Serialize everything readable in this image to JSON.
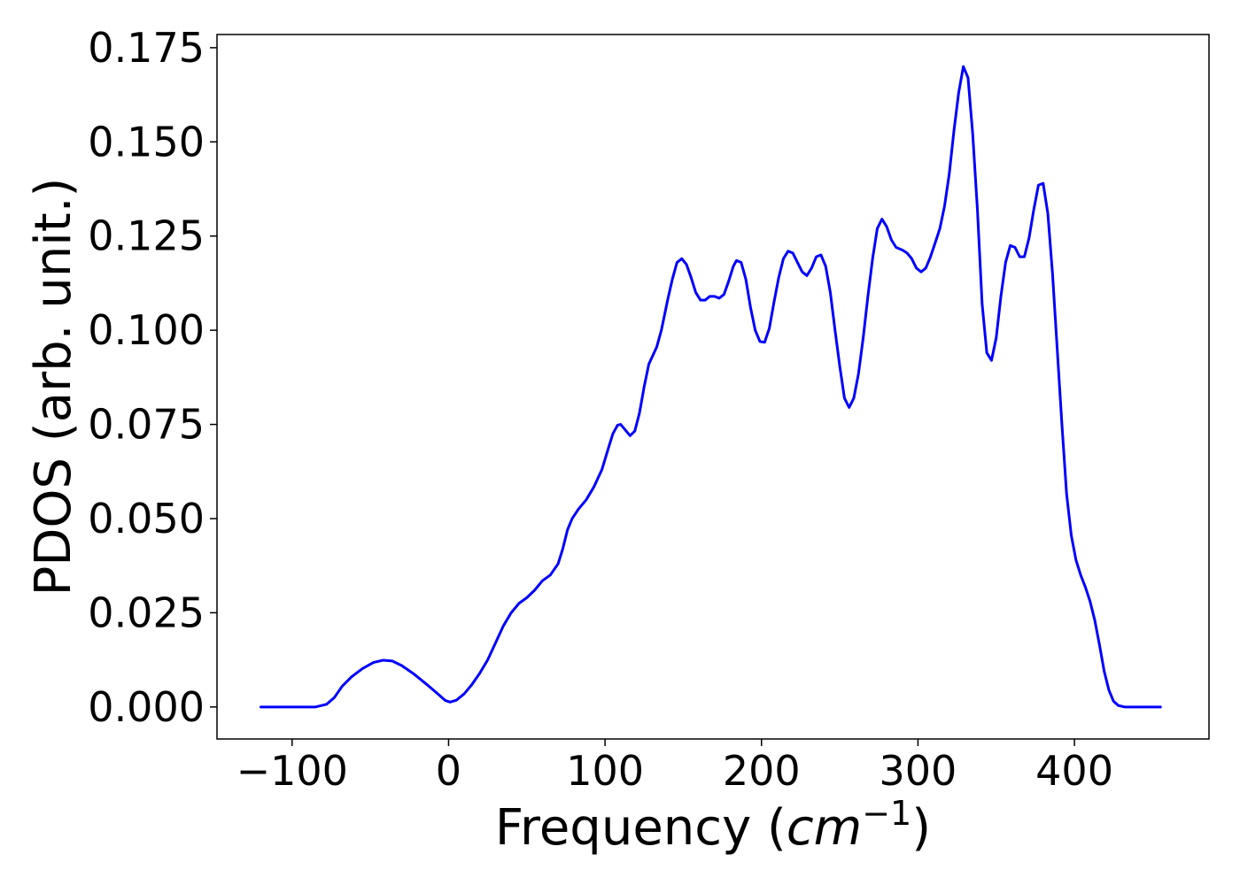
{
  "chart_data": {
    "type": "line",
    "xlabel": {
      "prefix": "Frequency (",
      "italic": "cm",
      "superscript": "−1",
      "suffix": ")"
    },
    "ylabel": "PDOS (arb. unit.)",
    "xlim": [
      -148,
      486
    ],
    "ylim": [
      -0.0085,
      0.1785
    ],
    "x_ticks": [
      {
        "value": -100,
        "label": "−100"
      },
      {
        "value": 0,
        "label": "0"
      },
      {
        "value": 100,
        "label": "100"
      },
      {
        "value": 200,
        "label": "200"
      },
      {
        "value": 300,
        "label": "300"
      },
      {
        "value": 400,
        "label": "400"
      }
    ],
    "y_ticks": [
      {
        "value": 0.0,
        "label": "0.000"
      },
      {
        "value": 0.025,
        "label": "0.025"
      },
      {
        "value": 0.05,
        "label": "0.050"
      },
      {
        "value": 0.075,
        "label": "0.075"
      },
      {
        "value": 0.1,
        "label": "0.100"
      },
      {
        "value": 0.125,
        "label": "0.125"
      },
      {
        "value": 0.15,
        "label": "0.150"
      },
      {
        "value": 0.175,
        "label": "0.175"
      }
    ],
    "grid": false,
    "series": [
      {
        "color": "#0000ff",
        "points": [
          [
            -120,
            0.0
          ],
          [
            -100,
            0.0
          ],
          [
            -85,
            0.0
          ],
          [
            -78,
            0.0007
          ],
          [
            -73,
            0.0025
          ],
          [
            -68,
            0.0055
          ],
          [
            -62,
            0.008
          ],
          [
            -55,
            0.0102
          ],
          [
            -48,
            0.0118
          ],
          [
            -42,
            0.0124
          ],
          [
            -36,
            0.0122
          ],
          [
            -30,
            0.011
          ],
          [
            -22,
            0.0087
          ],
          [
            -14,
            0.006
          ],
          [
            -7,
            0.0035
          ],
          [
            -2,
            0.0017
          ],
          [
            1,
            0.0013
          ],
          [
            5,
            0.0018
          ],
          [
            10,
            0.0035
          ],
          [
            15,
            0.006
          ],
          [
            20,
            0.009
          ],
          [
            25,
            0.0125
          ],
          [
            30,
            0.017
          ],
          [
            35,
            0.0215
          ],
          [
            40,
            0.025
          ],
          [
            45,
            0.0275
          ],
          [
            50,
            0.029
          ],
          [
            55,
            0.031
          ],
          [
            60,
            0.0335
          ],
          [
            65,
            0.035
          ],
          [
            70,
            0.038
          ],
          [
            73,
            0.042
          ],
          [
            76,
            0.047
          ],
          [
            79,
            0.05
          ],
          [
            83,
            0.0525
          ],
          [
            88,
            0.055
          ],
          [
            93,
            0.0585
          ],
          [
            98,
            0.063
          ],
          [
            102,
            0.0685
          ],
          [
            105,
            0.0725
          ],
          [
            108,
            0.0748
          ],
          [
            110,
            0.075
          ],
          [
            113,
            0.0735
          ],
          [
            116,
            0.072
          ],
          [
            119,
            0.0732
          ],
          [
            122,
            0.078
          ],
          [
            125,
            0.085
          ],
          [
            128,
            0.091
          ],
          [
            133,
            0.0955
          ],
          [
            136,
            0.1
          ],
          [
            140,
            0.108
          ],
          [
            143,
            0.1135
          ],
          [
            146,
            0.118
          ],
          [
            149,
            0.119
          ],
          [
            152,
            0.1175
          ],
          [
            155,
            0.114
          ],
          [
            158,
            0.11
          ],
          [
            161,
            0.108
          ],
          [
            164,
            0.108
          ],
          [
            167,
            0.109
          ],
          [
            170,
            0.109
          ],
          [
            173,
            0.1085
          ],
          [
            176,
            0.1095
          ],
          [
            179,
            0.113
          ],
          [
            182,
            0.117
          ],
          [
            184,
            0.1185
          ],
          [
            187,
            0.118
          ],
          [
            190,
            0.1135
          ],
          [
            193,
            0.106
          ],
          [
            196,
            0.1
          ],
          [
            199,
            0.097
          ],
          [
            202,
            0.0968
          ],
          [
            205,
            0.1005
          ],
          [
            208,
            0.1075
          ],
          [
            211,
            0.114
          ],
          [
            214,
            0.119
          ],
          [
            217,
            0.121
          ],
          [
            220,
            0.1205
          ],
          [
            223,
            0.118
          ],
          [
            226,
            0.1155
          ],
          [
            229,
            0.1145
          ],
          [
            232,
            0.1165
          ],
          [
            235,
            0.1195
          ],
          [
            238,
            0.12
          ],
          [
            241,
            0.117
          ],
          [
            244,
            0.11
          ],
          [
            247,
            0.1
          ],
          [
            250,
            0.0905
          ],
          [
            253,
            0.082
          ],
          [
            256,
            0.0795
          ],
          [
            259,
            0.082
          ],
          [
            262,
            0.0885
          ],
          [
            265,
            0.098
          ],
          [
            268,
            0.109
          ],
          [
            271,
            0.119
          ],
          [
            274,
            0.127
          ],
          [
            277,
            0.1295
          ],
          [
            280,
            0.1275
          ],
          [
            283,
            0.124
          ],
          [
            286,
            0.122
          ],
          [
            290,
            0.1213
          ],
          [
            293,
            0.1205
          ],
          [
            296,
            0.119
          ],
          [
            299,
            0.1165
          ],
          [
            302,
            0.1155
          ],
          [
            305,
            0.1165
          ],
          [
            308,
            0.1195
          ],
          [
            311,
            0.1232
          ],
          [
            314,
            0.127
          ],
          [
            317,
            0.133
          ],
          [
            320,
            0.1415
          ],
          [
            323,
            0.153
          ],
          [
            326,
            0.163
          ],
          [
            329,
            0.17
          ],
          [
            332,
            0.167
          ],
          [
            335,
            0.152
          ],
          [
            338,
            0.132
          ],
          [
            341,
            0.107
          ],
          [
            344,
            0.094
          ],
          [
            347,
            0.092
          ],
          [
            350,
            0.098
          ],
          [
            353,
            0.109
          ],
          [
            356,
            0.118
          ],
          [
            359,
            0.1225
          ],
          [
            362,
            0.122
          ],
          [
            365,
            0.1195
          ],
          [
            368,
            0.1195
          ],
          [
            371,
            0.1245
          ],
          [
            374,
            0.132
          ],
          [
            377,
            0.1385
          ],
          [
            380,
            0.139
          ],
          [
            383,
            0.131
          ],
          [
            386,
            0.115
          ],
          [
            389,
            0.095
          ],
          [
            392,
            0.075
          ],
          [
            395,
            0.0565
          ],
          [
            398,
            0.0455
          ],
          [
            401,
            0.039
          ],
          [
            404,
            0.035
          ],
          [
            407,
            0.0318
          ],
          [
            410,
            0.028
          ],
          [
            413,
            0.023
          ],
          [
            416,
            0.0165
          ],
          [
            419,
            0.0095
          ],
          [
            422,
            0.0045
          ],
          [
            425,
            0.0015
          ],
          [
            428,
            0.0004
          ],
          [
            432,
            0.0
          ],
          [
            440,
            0.0
          ],
          [
            455,
            0.0
          ]
        ]
      }
    ]
  }
}
